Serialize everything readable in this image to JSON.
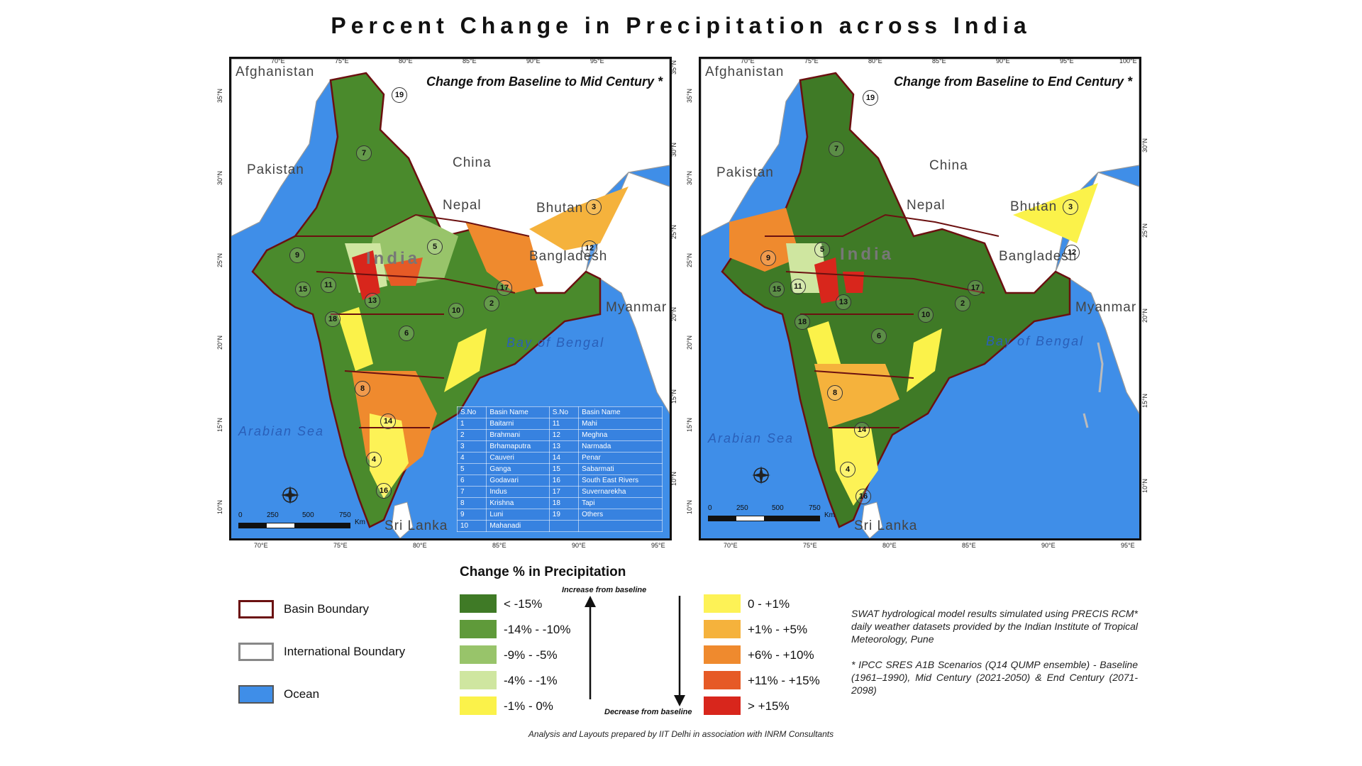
{
  "title": "Percent Change in Precipitation across India",
  "maps": [
    {
      "panel_title": "Change from Baseline to Mid Century *",
      "countries": [
        "Afghanistan",
        "Pakistan",
        "China",
        "Nepal",
        "Bhutan",
        "Bangladesh",
        "Myanmar",
        "Sri Lanka"
      ],
      "country_name": "India",
      "seas": [
        "Arabian Sea",
        "Bay of Bengal"
      ],
      "lon_ticks_top": [
        "70°E",
        "75°E",
        "80°E",
        "85°E",
        "90°E",
        "95°E"
      ],
      "lon_ticks_bottom": [
        "70°E",
        "75°E",
        "80°E",
        "85°E",
        "90°E",
        "95°E"
      ],
      "lat_ticks_left": [
        "35°N",
        "30°N",
        "25°N",
        "20°N",
        "15°N",
        "10°N"
      ],
      "lat_ticks_right": [
        "35°N",
        "30°N",
        "25°N",
        "20°N",
        "15°N",
        "10°N"
      ],
      "scale_labels": [
        "0",
        "250",
        "500",
        "750",
        "Km"
      ]
    },
    {
      "panel_title": "Change from Baseline to End Century *",
      "countries": [
        "Afghanistan",
        "Pakistan",
        "China",
        "Nepal",
        "Bhutan",
        "Bangladesh",
        "Myanmar",
        "Sri Lanka"
      ],
      "country_name": "India",
      "seas": [
        "Arabian Sea",
        "Bay of Bengal"
      ],
      "lon_ticks_top": [
        "70°E",
        "75°E",
        "80°E",
        "85°E",
        "90°E",
        "95°E",
        "100°E"
      ],
      "lon_ticks_bottom": [
        "70°E",
        "75°E",
        "80°E",
        "85°E",
        "90°E",
        "95°E"
      ],
      "lat_ticks_left": [
        "35°N",
        "30°N",
        "25°N",
        "20°N",
        "15°N",
        "10°N"
      ],
      "lat_ticks_right": [
        "30°N",
        "25°N",
        "20°N",
        "15°N",
        "10°N"
      ],
      "scale_labels": [
        "0",
        "250",
        "500",
        "750",
        "Km"
      ]
    }
  ],
  "basin_table": {
    "headers": [
      "S.No",
      "Basin Name",
      "S.No",
      "Basin Name"
    ],
    "rows": [
      [
        "1",
        "Baitarni",
        "11",
        "Mahi"
      ],
      [
        "2",
        "Brahmani",
        "12",
        "Meghna"
      ],
      [
        "3",
        "Brhamaputra",
        "13",
        "Narmada"
      ],
      [
        "4",
        "Cauveri",
        "14",
        "Penar"
      ],
      [
        "5",
        "Ganga",
        "15",
        "Sabarmati"
      ],
      [
        "6",
        "Godavari",
        "16",
        "South East Rivers"
      ],
      [
        "7",
        "Indus",
        "17",
        "Suvernarekha"
      ],
      [
        "8",
        "Krishna",
        "18",
        "Tapi"
      ],
      [
        "9",
        "Luni",
        "19",
        "Others"
      ],
      [
        "10",
        "Mahanadi",
        "",
        ""
      ]
    ]
  },
  "legend": {
    "heading": "Change % in Precipitation",
    "boundaries": [
      {
        "label": "Basin Boundary"
      },
      {
        "label": "International Boundary"
      },
      {
        "label": "Ocean",
        "color": "#3f8ee8"
      }
    ],
    "decrease_classes": [
      {
        "label": "< -15%",
        "color": "#3f7a26"
      },
      {
        "label": "-14% - -10%",
        "color": "#5f9a3a"
      },
      {
        "label": "-9% - -5%",
        "color": "#98c46a"
      },
      {
        "label": "-4% - -1%",
        "color": "#cfe6a0"
      },
      {
        "label": "-1% - 0%",
        "color": "#fbf24a"
      }
    ],
    "increase_classes": [
      {
        "label": "0 - +1%",
        "color": "#fdf256"
      },
      {
        "label": "+1% - +5%",
        "color": "#f5b23c"
      },
      {
        "label": "+6% - +10%",
        "color": "#ef8a2e"
      },
      {
        "label": "+11% - +15%",
        "color": "#e65a26"
      },
      {
        "label": "> +15%",
        "color": "#d8261c"
      }
    ],
    "increase_note": "Increase from baseline",
    "decrease_note": "Decrease from baseline"
  },
  "notes": {
    "model": "SWAT hydrological model results simulated using PRECIS RCM* daily weather datasets provided by the Indian Institute of Tropical Meteorology, Pune",
    "scenario": "* IPCC SRES A1B Scenarios (Q14 QUMP ensemble) - Baseline (1961–1990), Mid Century (2021-2050) & End Century (2071-2098)"
  },
  "credit": "Analysis and Layouts prepared by IIT Delhi in association with INRM Consultants"
}
